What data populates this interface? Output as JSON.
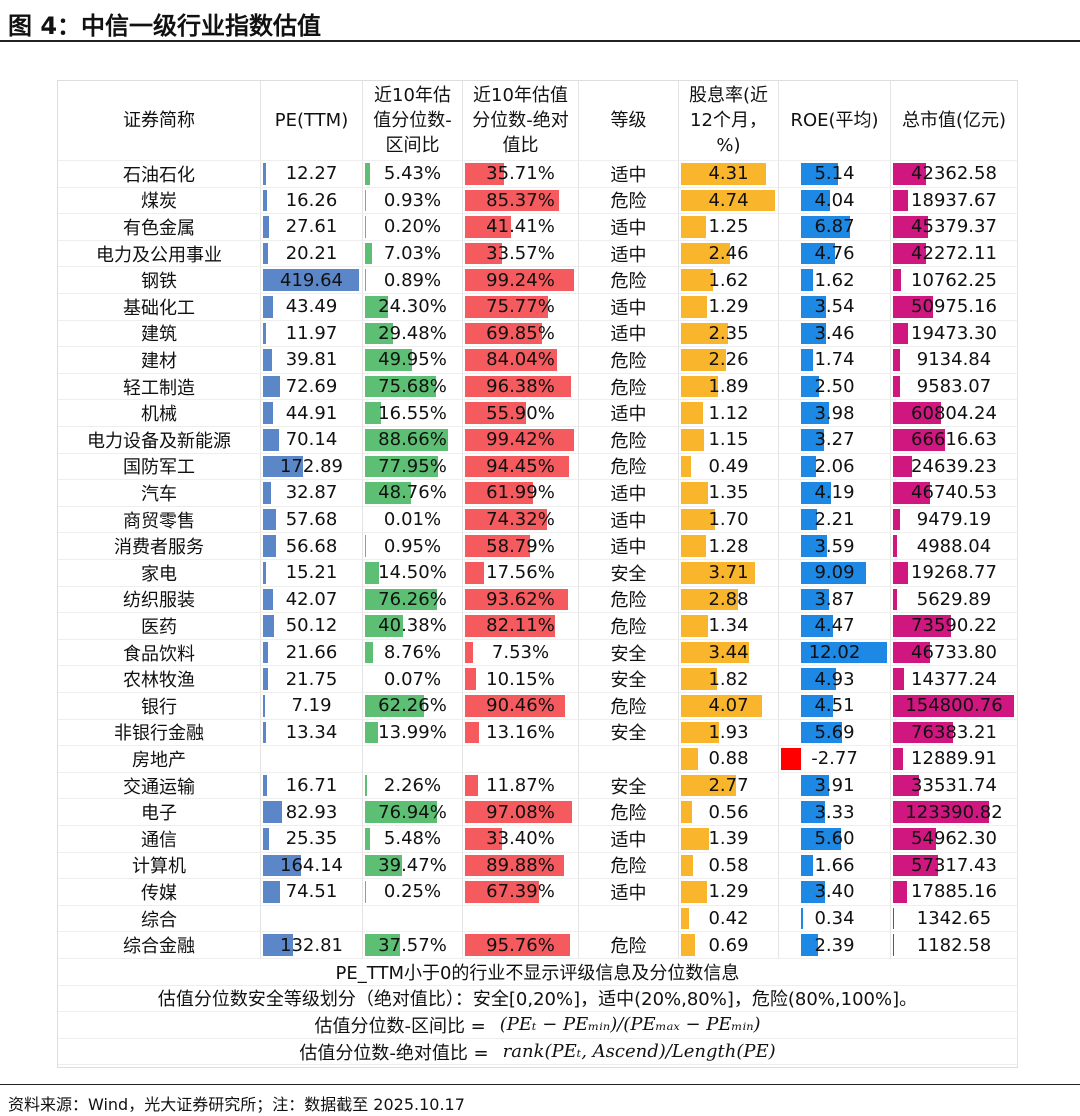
{
  "title": "图 4：中信一级行业指数估值",
  "table": {
    "headers": [
      "证券简称",
      "PE(TTM)",
      "近10年估值分位数-区间比",
      "近10年估值分位数-绝对值比",
      "等级",
      "股息率(近12个月，%)",
      "ROE(平均)",
      "总市值(亿元)"
    ],
    "rows": [
      [
        "石油石化",
        "12.27",
        "5.43%",
        "35.71%",
        "适中",
        "4.31",
        "5.14",
        "42362.58"
      ],
      [
        "煤炭",
        "16.26",
        "0.93%",
        "85.37%",
        "危险",
        "4.74",
        "4.04",
        "18937.67"
      ],
      [
        "有色金属",
        "27.61",
        "0.20%",
        "41.41%",
        "适中",
        "1.25",
        "6.87",
        "45379.37"
      ],
      [
        "电力及公用事业",
        "20.21",
        "7.03%",
        "33.57%",
        "适中",
        "2.46",
        "4.76",
        "42272.11"
      ],
      [
        "钢铁",
        "419.64",
        "0.89%",
        "99.24%",
        "危险",
        "1.62",
        "1.62",
        "10762.25"
      ],
      [
        "基础化工",
        "43.49",
        "24.30%",
        "75.77%",
        "适中",
        "1.29",
        "3.54",
        "50975.16"
      ],
      [
        "建筑",
        "11.97",
        "29.48%",
        "69.85%",
        "适中",
        "2.35",
        "3.46",
        "19473.30"
      ],
      [
        "建材",
        "39.81",
        "49.95%",
        "84.04%",
        "危险",
        "2.26",
        "1.74",
        "9134.84"
      ],
      [
        "轻工制造",
        "72.69",
        "75.68%",
        "96.38%",
        "危险",
        "1.89",
        "2.50",
        "9583.07"
      ],
      [
        "机械",
        "44.91",
        "16.55%",
        "55.90%",
        "适中",
        "1.12",
        "3.98",
        "60804.24"
      ],
      [
        "电力设备及新能源",
        "70.14",
        "88.66%",
        "99.42%",
        "危险",
        "1.15",
        "3.27",
        "66616.63"
      ],
      [
        "国防军工",
        "172.89",
        "77.95%",
        "94.45%",
        "危险",
        "0.49",
        "2.06",
        "24639.23"
      ],
      [
        "汽车",
        "32.87",
        "48.76%",
        "61.99%",
        "适中",
        "1.35",
        "4.19",
        "46740.53"
      ],
      [
        "商贸零售",
        "57.68",
        "0.01%",
        "74.32%",
        "适中",
        "1.70",
        "2.21",
        "9479.19"
      ],
      [
        "消费者服务",
        "56.68",
        "0.95%",
        "58.79%",
        "适中",
        "1.28",
        "3.59",
        "4988.04"
      ],
      [
        "家电",
        "15.21",
        "14.50%",
        "17.56%",
        "安全",
        "3.71",
        "9.09",
        "19268.77"
      ],
      [
        "纺织服装",
        "42.07",
        "76.26%",
        "93.62%",
        "危险",
        "2.88",
        "3.87",
        "5629.89"
      ],
      [
        "医药",
        "50.12",
        "40.38%",
        "82.11%",
        "危险",
        "1.34",
        "4.47",
        "73590.22"
      ],
      [
        "食品饮料",
        "21.66",
        "8.76%",
        "7.53%",
        "安全",
        "3.44",
        "12.02",
        "46733.80"
      ],
      [
        "农林牧渔",
        "21.75",
        "0.07%",
        "10.15%",
        "安全",
        "1.82",
        "4.93",
        "14377.24"
      ],
      [
        "银行",
        "7.19",
        "62.26%",
        "90.46%",
        "危险",
        "4.07",
        "4.51",
        "154800.76"
      ],
      [
        "非银行金融",
        "13.34",
        "13.99%",
        "13.16%",
        "安全",
        "1.93",
        "5.69",
        "76383.21"
      ],
      [
        "房地产",
        null,
        null,
        null,
        null,
        "0.88",
        "-2.77",
        "12889.91"
      ],
      [
        "交通运输",
        "16.71",
        "2.26%",
        "11.87%",
        "安全",
        "2.77",
        "3.91",
        "33531.74"
      ],
      [
        "电子",
        "82.93",
        "76.94%",
        "97.08%",
        "危险",
        "0.56",
        "3.33",
        "123390.82"
      ],
      [
        "通信",
        "25.35",
        "5.48%",
        "33.40%",
        "适中",
        "1.39",
        "5.60",
        "54962.30"
      ],
      [
        "计算机",
        "164.14",
        "39.47%",
        "89.88%",
        "危险",
        "0.58",
        "1.66",
        "57317.43"
      ],
      [
        "传媒",
        "74.51",
        "0.25%",
        "67.39%",
        "适中",
        "1.29",
        "3.40",
        "17885.16"
      ],
      [
        "综合",
        null,
        null,
        null,
        null,
        "0.42",
        "0.34",
        "1342.65"
      ],
      [
        "综合金融",
        "132.81",
        "37.57%",
        "95.76%",
        "危险",
        "0.69",
        "2.39",
        "1182.58"
      ]
    ],
    "notes": [
      "PE_TTM小于0的行业不显示评级信息及分位数信息",
      "估值分位数安全等级划分（绝对值比）：安全[0,20%]，适中(20%,80%]，危险(80%,100%]。"
    ],
    "formulas": [
      {
        "label": "估值分位数-区间比 =",
        "formula": "(PEₜ − PEₘᵢₙ)/(PEₘₐₓ − PEₘᵢₙ)"
      },
      {
        "label": "估值分位数-绝对值比 =",
        "formula": "rank(PEₜ, Ascend)/Length(PE)"
      }
    ]
  },
  "source": "资料来源：Wind，光大证券研究所；注：数据截至 2025.10.17"
}
